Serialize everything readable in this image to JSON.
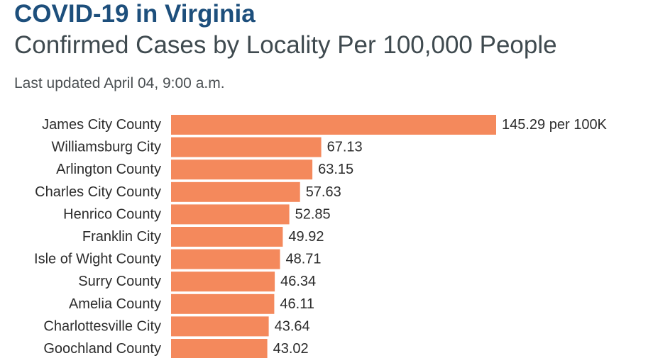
{
  "header": {
    "title": "COVID-19 in Virginia",
    "subtitle": "Confirmed Cases by Locality Per 100,000 People",
    "updated": "Last updated April 04, 9:00 a.m."
  },
  "chart_data": {
    "type": "bar",
    "orientation": "horizontal",
    "title": "COVID-19 in Virginia",
    "subtitle": "Confirmed Cases by Locality Per 100,000 People",
    "categories": [
      "James City County",
      "Williamsburg City",
      "Arlington County",
      "Charles City County",
      "Henrico County",
      "Franklin City",
      "Isle of Wight County",
      "Surry County",
      "Amelia County",
      "Charlottesville City",
      "Goochland County"
    ],
    "values": [
      145.29,
      67.13,
      63.15,
      57.63,
      52.85,
      49.92,
      48.71,
      46.34,
      46.11,
      43.64,
      43.02
    ],
    "data_labels": [
      "145.29 per 100K",
      "67.13",
      "63.15",
      "57.63",
      "52.85",
      "49.92",
      "48.71",
      "46.34",
      "46.11",
      "43.64",
      "43.02"
    ],
    "bar_color": "#f4895c",
    "grid": false,
    "legend": "none"
  }
}
